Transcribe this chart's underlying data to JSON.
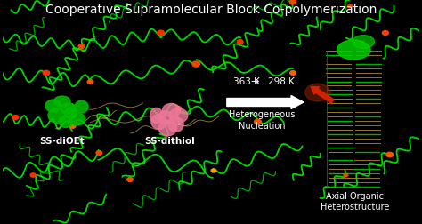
{
  "title": "Cooperative Supramolecular Block Co-polymerization",
  "title_color": "#FFFFFF",
  "background_color": "#000000",
  "label_ss_dioet": "SS-diOEt",
  "label_ss_dithiol": "SS-dithiol",
  "label_temp": "363 K",
  "label_temp2": "298 K",
  "label_arrow_temp": "→",
  "label_process": "Heterogeneous\nNucleation",
  "label_product": "Axial Organic\nHeterostructure",
  "arrow_color": "#FFFFFF",
  "text_color": "#FFFFFF",
  "green_blob_color": "#00BB00",
  "pink_blob_color": "#EE7799",
  "red_blob_color": "#BB1100",
  "red_arrow_color": "#DD2200",
  "fiber_green": "#00EE00",
  "fiber_red": "#FF3300",
  "fiber_yellow": "#FFAA00",
  "tan_color": "#CCAA55",
  "stack_tan": "#AA8833",
  "stack_green": "#00CC00"
}
